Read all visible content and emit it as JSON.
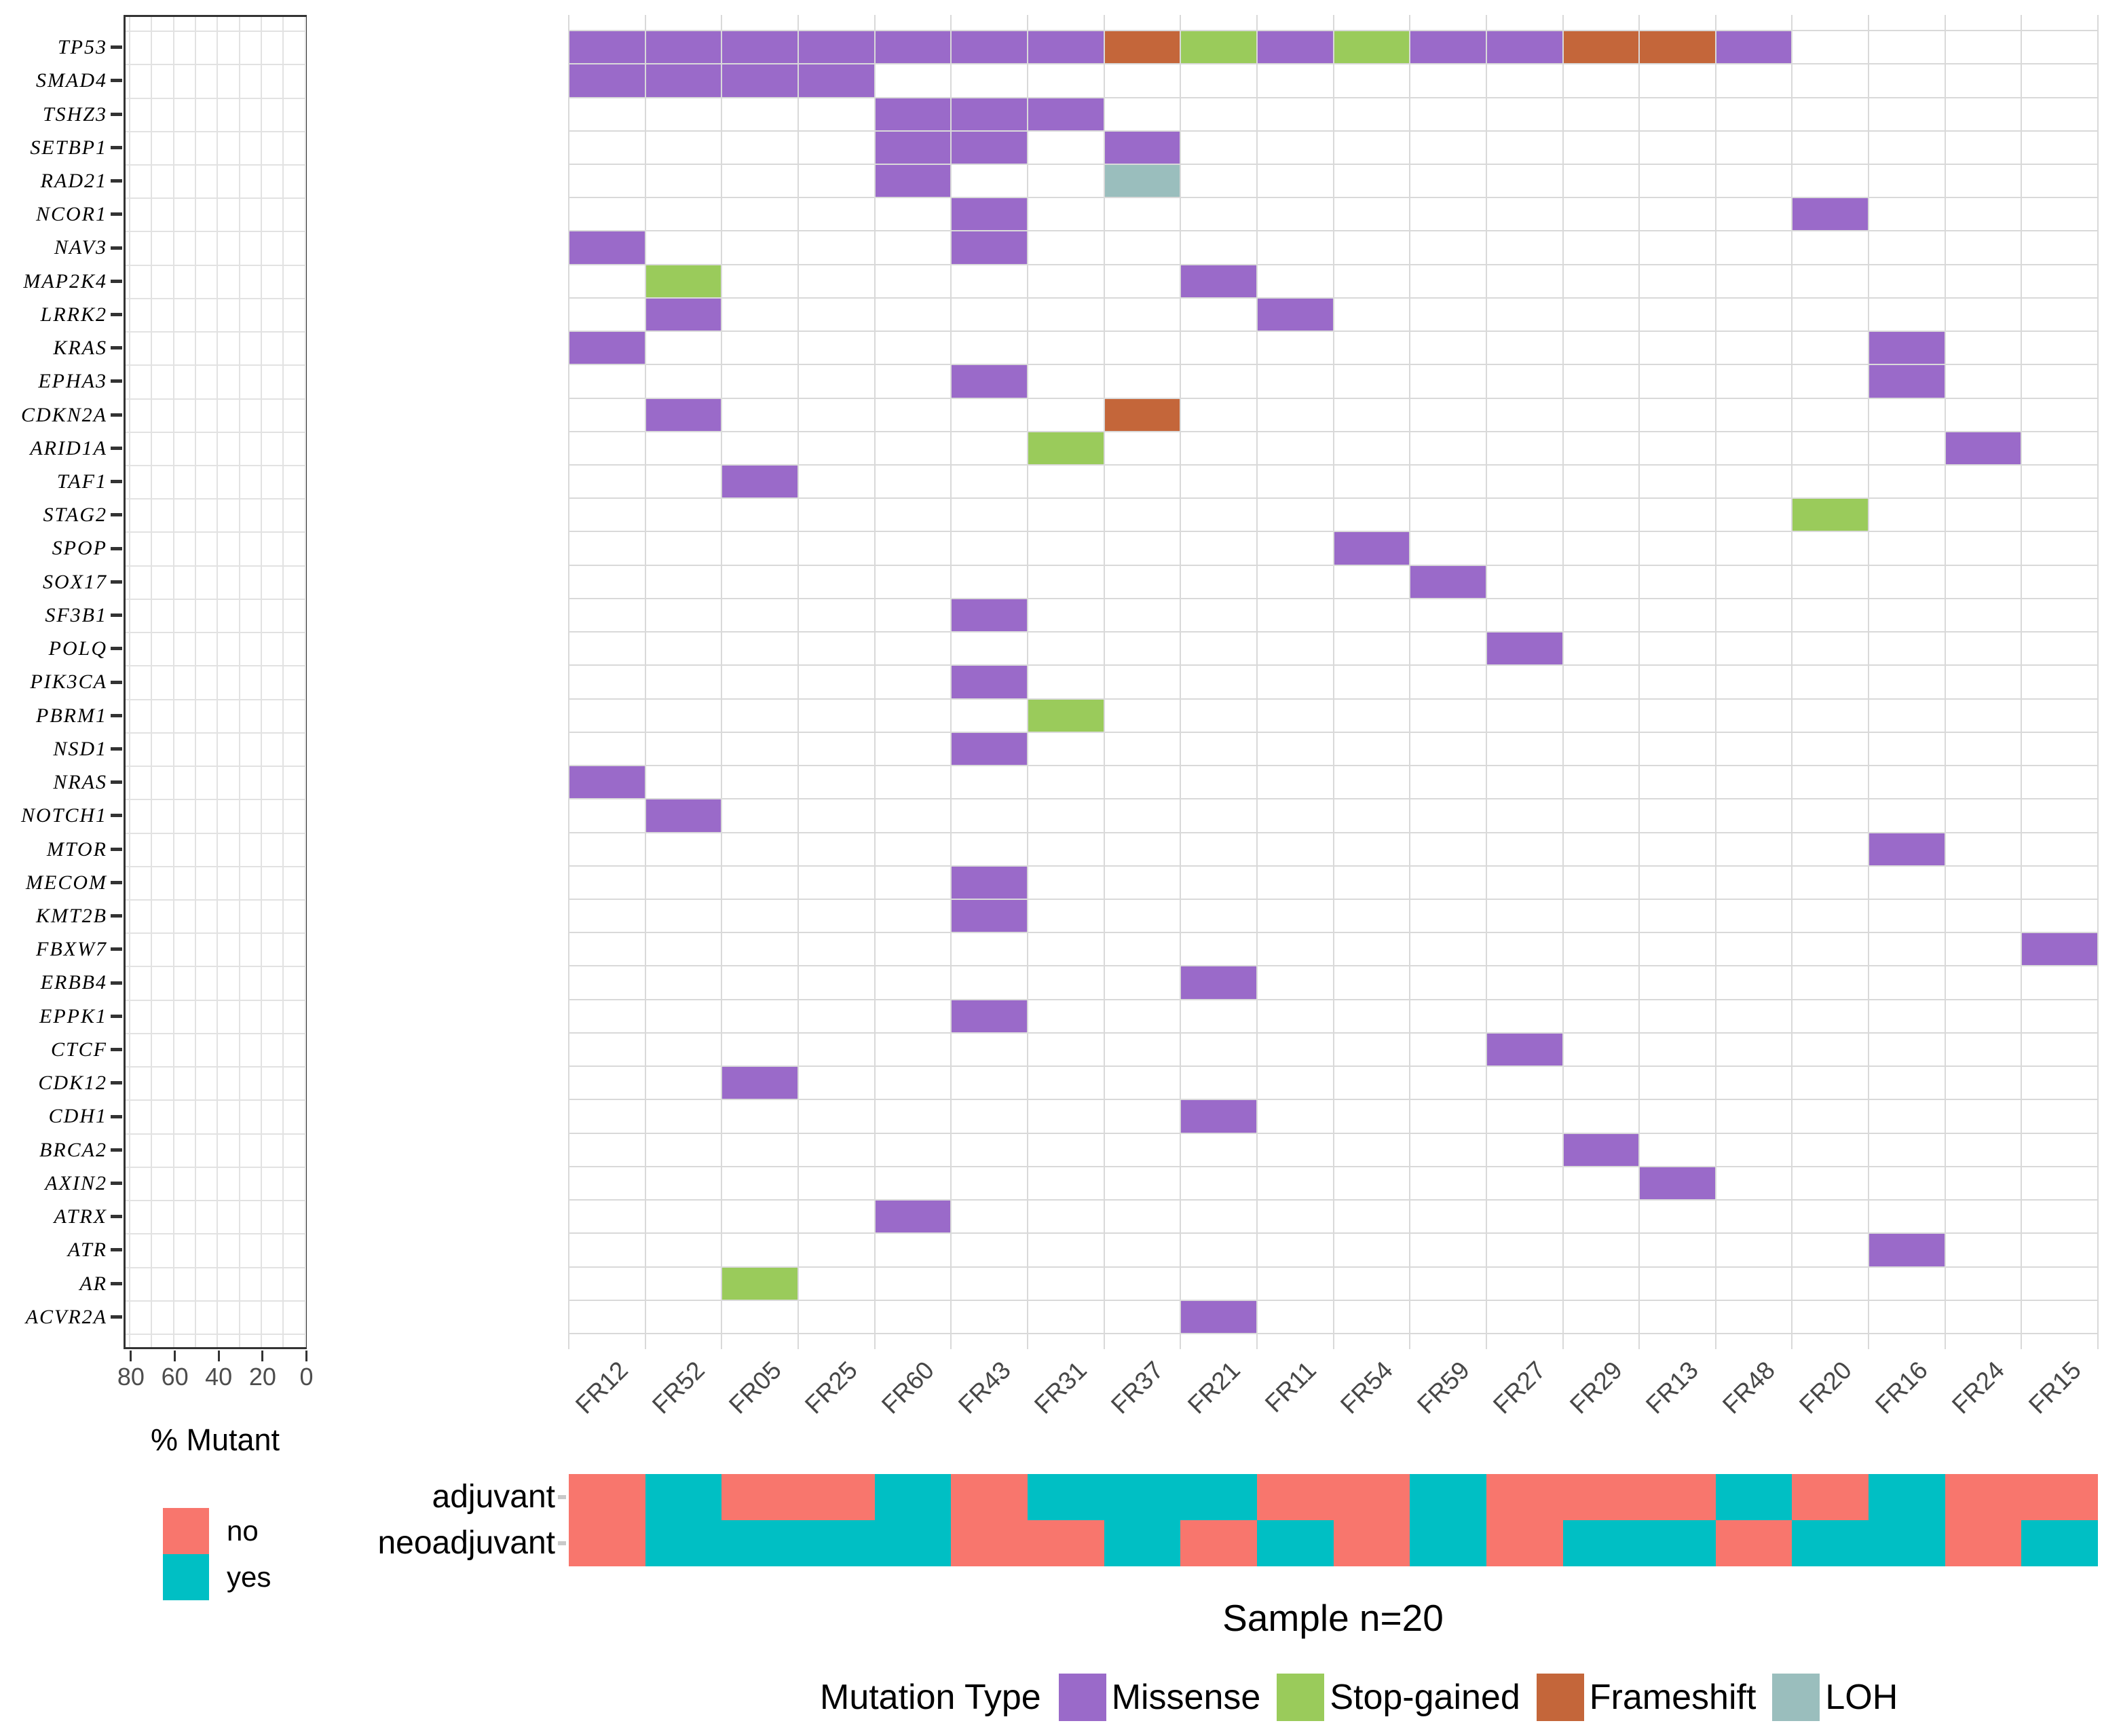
{
  "chart_data": {
    "type": "heatmap",
    "title": "",
    "genes": [
      "TP53",
      "SMAD4",
      "TSHZ3",
      "SETBP1",
      "RAD21",
      "NCOR1",
      "NAV3",
      "MAP2K4",
      "LRRK2",
      "KRAS",
      "EPHA3",
      "CDKN2A",
      "ARID1A",
      "TAF1",
      "STAG2",
      "SPOP",
      "SOX17",
      "SF3B1",
      "POLQ",
      "PIK3CA",
      "PBRM1",
      "NSD1",
      "NRAS",
      "NOTCH1",
      "MTOR",
      "MECOM",
      "KMT2B",
      "FBXW7",
      "ERBB4",
      "EPPK1",
      "CTCF",
      "CDK12",
      "CDH1",
      "BRCA2",
      "AXIN2",
      "ATRX",
      "ATR",
      "AR",
      "ACVR2A"
    ],
    "samples": [
      "FR12",
      "FR52",
      "FR05",
      "FR25",
      "FR60",
      "FR43",
      "FR31",
      "FR37",
      "FR21",
      "FR11",
      "FR54",
      "FR59",
      "FR27",
      "FR29",
      "FR13",
      "FR48",
      "FR20",
      "FR16",
      "FR24",
      "FR15"
    ],
    "left_axis": {
      "label": "% Mutant",
      "ticks": [
        "80",
        "60",
        "40",
        "20",
        "0"
      ],
      "tick_values": [
        80,
        60,
        40,
        20,
        0
      ],
      "grid": true
    },
    "mutation_legend_title": "Mutation Type",
    "mutation_types": [
      {
        "name": "Missense",
        "color": "#9A6AC9"
      },
      {
        "name": "Stop-gained",
        "color": "#9ACB5B"
      },
      {
        "name": "Frameshift",
        "color": "#C4663A"
      },
      {
        "name": "LOH",
        "color": "#9ABEBD"
      }
    ],
    "mutations": [
      [
        "TP53",
        "FR12",
        "Missense"
      ],
      [
        "TP53",
        "FR52",
        "Missense"
      ],
      [
        "TP53",
        "FR05",
        "Missense"
      ],
      [
        "TP53",
        "FR25",
        "Missense"
      ],
      [
        "TP53",
        "FR60",
        "Missense"
      ],
      [
        "TP53",
        "FR43",
        "Missense"
      ],
      [
        "TP53",
        "FR31",
        "Missense"
      ],
      [
        "TP53",
        "FR37",
        "Frameshift"
      ],
      [
        "TP53",
        "FR21",
        "Stop-gained"
      ],
      [
        "TP53",
        "FR11",
        "Missense"
      ],
      [
        "TP53",
        "FR54",
        "Stop-gained"
      ],
      [
        "TP53",
        "FR59",
        "Missense"
      ],
      [
        "TP53",
        "FR27",
        "Missense"
      ],
      [
        "TP53",
        "FR29",
        "Frameshift"
      ],
      [
        "TP53",
        "FR13",
        "Frameshift"
      ],
      [
        "TP53",
        "FR48",
        "Missense"
      ],
      [
        "SMAD4",
        "FR12",
        "Missense"
      ],
      [
        "SMAD4",
        "FR52",
        "Missense"
      ],
      [
        "SMAD4",
        "FR05",
        "Missense"
      ],
      [
        "SMAD4",
        "FR25",
        "Missense"
      ],
      [
        "TSHZ3",
        "FR60",
        "Missense"
      ],
      [
        "TSHZ3",
        "FR43",
        "Missense"
      ],
      [
        "TSHZ3",
        "FR31",
        "Missense"
      ],
      [
        "SETBP1",
        "FR60",
        "Missense"
      ],
      [
        "SETBP1",
        "FR43",
        "Missense"
      ],
      [
        "SETBP1",
        "FR37",
        "Missense"
      ],
      [
        "RAD21",
        "FR60",
        "Missense"
      ],
      [
        "RAD21",
        "FR37",
        "LOH"
      ],
      [
        "NCOR1",
        "FR43",
        "Missense"
      ],
      [
        "NCOR1",
        "FR20",
        "Missense"
      ],
      [
        "NAV3",
        "FR12",
        "Missense"
      ],
      [
        "NAV3",
        "FR43",
        "Missense"
      ],
      [
        "MAP2K4",
        "FR52",
        "Stop-gained"
      ],
      [
        "MAP2K4",
        "FR21",
        "Missense"
      ],
      [
        "LRRK2",
        "FR52",
        "Missense"
      ],
      [
        "LRRK2",
        "FR11",
        "Missense"
      ],
      [
        "KRAS",
        "FR12",
        "Missense"
      ],
      [
        "KRAS",
        "FR16",
        "Missense"
      ],
      [
        "EPHA3",
        "FR43",
        "Missense"
      ],
      [
        "EPHA3",
        "FR16",
        "Missense"
      ],
      [
        "CDKN2A",
        "FR52",
        "Missense"
      ],
      [
        "CDKN2A",
        "FR37",
        "Frameshift"
      ],
      [
        "ARID1A",
        "FR31",
        "Stop-gained"
      ],
      [
        "ARID1A",
        "FR24",
        "Missense"
      ],
      [
        "TAF1",
        "FR05",
        "Missense"
      ],
      [
        "STAG2",
        "FR20",
        "Stop-gained"
      ],
      [
        "SPOP",
        "FR54",
        "Missense"
      ],
      [
        "SOX17",
        "FR59",
        "Missense"
      ],
      [
        "SF3B1",
        "FR43",
        "Missense"
      ],
      [
        "POLQ",
        "FR27",
        "Missense"
      ],
      [
        "PIK3CA",
        "FR43",
        "Missense"
      ],
      [
        "PBRM1",
        "FR31",
        "Stop-gained"
      ],
      [
        "NSD1",
        "FR43",
        "Missense"
      ],
      [
        "NRAS",
        "FR12",
        "Missense"
      ],
      [
        "NOTCH1",
        "FR52",
        "Missense"
      ],
      [
        "MTOR",
        "FR16",
        "Missense"
      ],
      [
        "MECOM",
        "FR43",
        "Missense"
      ],
      [
        "KMT2B",
        "FR43",
        "Missense"
      ],
      [
        "FBXW7",
        "FR15",
        "Missense"
      ],
      [
        "ERBB4",
        "FR21",
        "Missense"
      ],
      [
        "EPPK1",
        "FR43",
        "Missense"
      ],
      [
        "CTCF",
        "FR27",
        "Missense"
      ],
      [
        "CDK12",
        "FR05",
        "Missense"
      ],
      [
        "CDH1",
        "FR21",
        "Missense"
      ],
      [
        "BRCA2",
        "FR29",
        "Missense"
      ],
      [
        "AXIN2",
        "FR13",
        "Missense"
      ],
      [
        "ATRX",
        "FR60",
        "Missense"
      ],
      [
        "ATR",
        "FR16",
        "Missense"
      ],
      [
        "AR",
        "FR05",
        "Stop-gained"
      ],
      [
        "ACVR2A",
        "FR21",
        "Missense"
      ]
    ],
    "annotation": {
      "rows": [
        {
          "label": "adjuvant",
          "values": [
            "no",
            "yes",
            "no",
            "no",
            "yes",
            "no",
            "yes",
            "yes",
            "yes",
            "no",
            "no",
            "yes",
            "no",
            "no",
            "no",
            "yes",
            "no",
            "yes",
            "no",
            "no"
          ]
        },
        {
          "label": "neoadjuvant",
          "values": [
            "no",
            "yes",
            "yes",
            "yes",
            "yes",
            "no",
            "no",
            "yes",
            "no",
            "yes",
            "no",
            "yes",
            "no",
            "yes",
            "yes",
            "no",
            "yes",
            "yes",
            "no",
            "yes"
          ]
        }
      ],
      "legend": {
        "items": [
          {
            "label": "no",
            "color": "#F8766D"
          },
          {
            "label": "yes",
            "color": "#00BFC4"
          }
        ]
      }
    },
    "xlabel": "Sample n=20",
    "legend_position": "bottom"
  }
}
